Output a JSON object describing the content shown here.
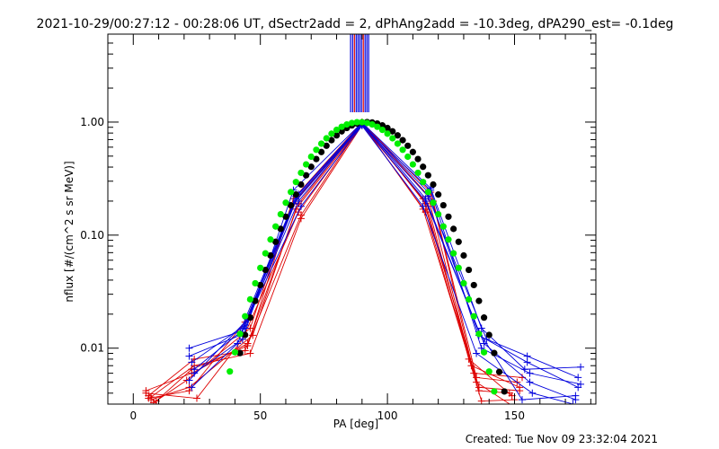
{
  "chart_data": {
    "type": "line",
    "title": "2021-10-29/00:27:12 - 00:28:06 UT, dSectr2add = 2, dPhAng2add = -10.3deg, dPA290_est= -0.1deg",
    "xlabel": "PA [deg]",
    "ylabel": "nflux [#/(cm^2 s sr MeV)]",
    "footer": "Created: Tue Nov 09 23:32:04 2021",
    "xlim": [
      -10,
      182
    ],
    "ylim": [
      0.0032,
      6.0
    ],
    "yscale": "log",
    "x_ticks": [
      0,
      50,
      100,
      150
    ],
    "x_tick_labels": [
      "0",
      "50",
      "100",
      "150"
    ],
    "y_ticks": [
      0.01,
      0.1,
      1.0
    ],
    "y_tick_labels": [
      "0.01",
      "0.10",
      "1.00"
    ],
    "grid": false,
    "colors": {
      "red": "#dd0000",
      "blue": "#0000dd",
      "black": "#000000",
      "green": "#00ee00"
    },
    "red_series": [
      {
        "x": [
          5,
          23,
          45,
          65,
          90,
          115,
          135,
          150
        ],
        "y": [
          0.0042,
          0.006,
          0.011,
          0.19,
          0.98,
          0.19,
          0.005,
          0.003
        ]
      },
      {
        "x": [
          7,
          22,
          47,
          64,
          90,
          116,
          133,
          152
        ],
        "y": [
          0.0035,
          0.0045,
          0.013,
          0.17,
          0.95,
          0.22,
          0.007,
          0.0045
        ]
      },
      {
        "x": [
          6,
          24,
          44,
          66,
          90,
          114,
          136,
          148
        ],
        "y": [
          0.0038,
          0.008,
          0.0095,
          0.15,
          0.97,
          0.17,
          0.0042,
          0.004
        ]
      },
      {
        "x": [
          8,
          21,
          46,
          63,
          90,
          117,
          134,
          153
        ],
        "y": [
          0.0033,
          0.0052,
          0.015,
          0.21,
          0.99,
          0.24,
          0.006,
          0.0055
        ]
      },
      {
        "x": [
          5,
          25,
          43,
          65,
          90,
          115,
          137,
          150
        ],
        "y": [
          0.004,
          0.0036,
          0.012,
          0.16,
          0.96,
          0.16,
          0.0034,
          0.0035
        ]
      },
      {
        "x": [
          9,
          23,
          45,
          62,
          90,
          118,
          135,
          151
        ],
        "y": [
          0.0034,
          0.0065,
          0.0105,
          0.18,
          1.0,
          0.2,
          0.0055,
          0.005
        ]
      },
      {
        "x": [
          6,
          22,
          44,
          64,
          90,
          116,
          132,
          149
        ],
        "y": [
          0.0036,
          0.0042,
          0.017,
          0.2,
          0.97,
          0.18,
          0.008,
          0.0038
        ]
      },
      {
        "x": [
          7,
          24,
          46,
          66,
          90,
          114,
          136,
          152
        ],
        "y": [
          0.0037,
          0.007,
          0.009,
          0.14,
          0.94,
          0.21,
          0.0045,
          0.0042
        ]
      }
    ],
    "blue_series": [
      {
        "x": [
          22,
          42,
          64,
          90,
          116,
          136,
          155,
          175
        ],
        "y": [
          0.01,
          0.014,
          0.22,
          0.97,
          0.24,
          0.013,
          0.0075,
          0.0045
        ]
      },
      {
        "x": [
          23,
          44,
          65,
          90,
          115,
          138,
          156,
          174
        ],
        "y": [
          0.0075,
          0.016,
          0.2,
          0.95,
          0.2,
          0.011,
          0.005,
          0.0035
        ]
      },
      {
        "x": [
          24,
          43,
          63,
          90,
          117,
          137,
          154,
          176
        ],
        "y": [
          0.006,
          0.012,
          0.25,
          0.99,
          0.26,
          0.015,
          0.0065,
          0.0068
        ]
      },
      {
        "x": [
          22,
          45,
          66,
          90,
          114,
          135,
          157,
          173
        ],
        "y": [
          0.0052,
          0.018,
          0.18,
          0.93,
          0.18,
          0.009,
          0.004,
          0.0032
        ]
      },
      {
        "x": [
          23,
          41,
          64,
          90,
          116,
          139,
          155,
          175
        ],
        "y": [
          0.0045,
          0.011,
          0.21,
          0.96,
          0.22,
          0.012,
          0.0085,
          0.0055
        ]
      },
      {
        "x": [
          24,
          44,
          65,
          90,
          115,
          136,
          153,
          174
        ],
        "y": [
          0.0065,
          0.015,
          0.23,
          0.98,
          0.21,
          0.014,
          0.0035,
          0.0038
        ]
      },
      {
        "x": [
          22,
          42,
          63,
          90,
          117,
          137,
          156,
          176
        ],
        "y": [
          0.0085,
          0.013,
          0.19,
          0.94,
          0.25,
          0.01,
          0.006,
          0.0048
        ]
      }
    ],
    "black_fit": {
      "x_start": 42,
      "x_end": 146,
      "step": 2,
      "peak_x": 92,
      "sigma": 16.3
    },
    "green_fit": {
      "x_start": 38,
      "x_end": 154,
      "step": 2,
      "peak_x": 89,
      "sigma": 16.0
    },
    "vertical_lines_x": [
      85.5,
      86.3,
      87.0,
      87.7,
      88.4,
      89.1,
      89.8,
      90.5,
      91.2,
      91.9,
      92.6
    ]
  }
}
